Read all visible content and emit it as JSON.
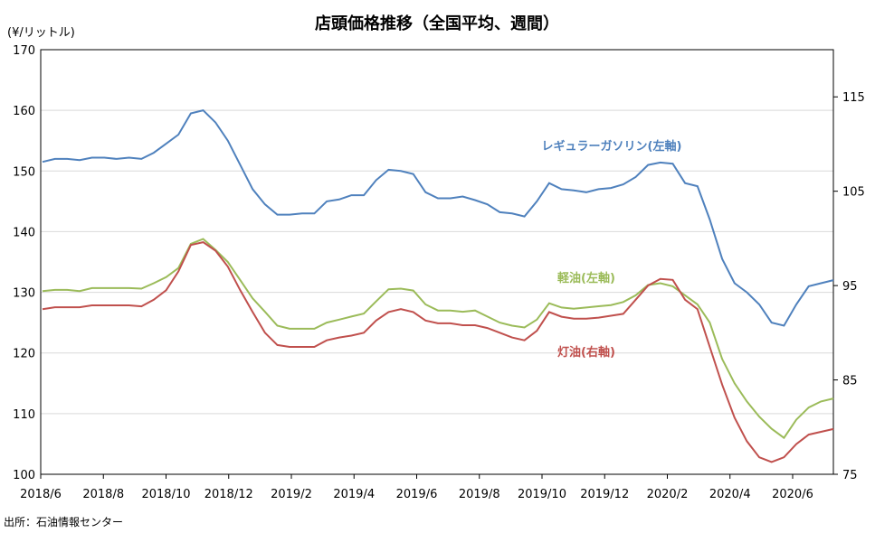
{
  "chart_data": {
    "type": "line",
    "title": "店頭価格推移（全国平均、週間）",
    "ylabel_left": "(¥/リットル)",
    "source": "出所：石油情報センター",
    "x_labels": [
      "2018/6",
      "2018/8",
      "2018/10",
      "2018/12",
      "2019/2",
      "2019/4",
      "2019/6",
      "2019/8",
      "2019/10",
      "2019/12",
      "2020/2",
      "2020/4",
      "2020/6"
    ],
    "y_left": {
      "min": 100,
      "max": 170,
      "ticks": [
        "100",
        "110",
        "120",
        "130",
        "140",
        "150",
        "160",
        "170"
      ]
    },
    "y_right": {
      "min": 75,
      "max": 120,
      "ticks": [
        "75",
        "85",
        "95",
        "105",
        "115"
      ]
    },
    "colors": {
      "gasoline": "#4F81BD",
      "diesel": "#9BBB59",
      "kerosene": "#C0504D"
    },
    "series": [
      {
        "key": "gasoline",
        "name": "レギュラーガソリン(左軸)",
        "axis": "left",
        "values": [
          151.5,
          152,
          152,
          151.8,
          152.2,
          152.2,
          152,
          152.2,
          152,
          153,
          154.5,
          156,
          159.5,
          160,
          158,
          155,
          151,
          147,
          144.5,
          142.8,
          142.8,
          143,
          143,
          145,
          145.3,
          146,
          146,
          148.5,
          150.2,
          150,
          149.5,
          146.5,
          145.5,
          145.5,
          145.8,
          145.2,
          144.5,
          143.2,
          143,
          142.5,
          145,
          148,
          147,
          146.8,
          146.5,
          147,
          147.2,
          147.8,
          149,
          151,
          151.4,
          151.2,
          148,
          147.5,
          142,
          135.5,
          131.5,
          130,
          128,
          125,
          124.5,
          128,
          131,
          131.5,
          132
        ]
      },
      {
        "key": "diesel",
        "name": "軽油(左軸)",
        "axis": "left",
        "values": [
          130.2,
          130.4,
          130.4,
          130.2,
          130.7,
          130.7,
          130.7,
          130.7,
          130.6,
          131.5,
          132.5,
          134,
          138,
          138.8,
          137,
          135,
          132,
          129,
          126.8,
          124.5,
          124,
          124,
          124,
          125,
          125.5,
          126,
          126.5,
          128.5,
          130.5,
          130.6,
          130.3,
          128,
          127,
          127,
          126.8,
          127,
          126,
          125,
          124.5,
          124.2,
          125.5,
          128.2,
          127.5,
          127.3,
          127.5,
          127.7,
          127.9,
          128.4,
          129.5,
          131.2,
          131.5,
          131,
          129.5,
          128,
          125,
          119,
          115,
          112,
          109.5,
          107.5,
          106,
          109,
          111,
          112,
          112.5
        ]
      },
      {
        "key": "kerosene",
        "name": "灯油(右軸)",
        "axis": "right",
        "values": [
          92.5,
          92.7,
          92.7,
          92.7,
          92.9,
          92.9,
          92.9,
          92.9,
          92.8,
          93.5,
          94.5,
          96.5,
          99.3,
          99.6,
          98.7,
          97,
          94.5,
          92.2,
          90,
          88.7,
          88.5,
          88.5,
          88.5,
          89.2,
          89.5,
          89.7,
          90,
          91.3,
          92.2,
          92.5,
          92.2,
          91.3,
          91,
          91,
          90.8,
          90.8,
          90.5,
          90,
          89.5,
          89.2,
          90.2,
          92.2,
          91.7,
          91.5,
          91.5,
          91.6,
          91.8,
          92,
          93.5,
          95,
          95.7,
          95.6,
          93.5,
          92.5,
          88.5,
          84.5,
          81,
          78.5,
          76.8,
          76.3,
          76.8,
          78.2,
          79.2,
          79.5,
          79.8
        ]
      }
    ],
    "annotations": [
      {
        "series": "gasoline",
        "text": "レギュラーガソリン(左軸)"
      },
      {
        "series": "diesel",
        "text": "軽油(左軸)"
      },
      {
        "series": "kerosene",
        "text": "灯油(右軸)"
      }
    ]
  }
}
